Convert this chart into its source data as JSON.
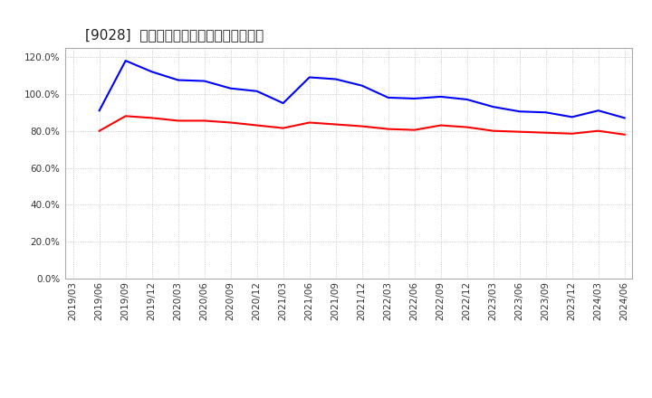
{
  "title": "[9028]  固定比率、固定長期適合率の推移",
  "x_labels": [
    "2019/03",
    "2019/06",
    "2019/09",
    "2019/12",
    "2020/03",
    "2020/06",
    "2020/09",
    "2020/12",
    "2021/03",
    "2021/06",
    "2021/09",
    "2021/12",
    "2022/03",
    "2022/06",
    "2022/09",
    "2022/12",
    "2023/03",
    "2023/06",
    "2023/09",
    "2023/12",
    "2024/03",
    "2024/06"
  ],
  "blue_values": [
    null,
    91.0,
    118.0,
    112.0,
    107.5,
    107.0,
    103.0,
    101.5,
    95.0,
    109.0,
    108.0,
    104.5,
    98.0,
    97.5,
    98.5,
    97.0,
    93.0,
    90.5,
    90.0,
    87.5,
    91.0,
    87.0
  ],
  "red_values": [
    null,
    80.0,
    88.0,
    87.0,
    85.5,
    85.5,
    84.5,
    83.0,
    81.5,
    84.5,
    83.5,
    82.5,
    81.0,
    80.5,
    83.0,
    82.0,
    80.0,
    79.5,
    79.0,
    78.5,
    80.0,
    78.0
  ],
  "blue_color": "#0000ff",
  "red_color": "#ff0000",
  "bg_color": "#ffffff",
  "grid_color": "#aaaaaa",
  "legend_blue": "固定比率",
  "legend_red": "固定長期適合率",
  "ylim": [
    0.0,
    125.0
  ],
  "yticks": [
    0.0,
    20.0,
    40.0,
    60.0,
    80.0,
    100.0,
    120.0
  ],
  "title_fontsize": 11,
  "tick_fontsize": 7.5,
  "legend_fontsize": 9
}
